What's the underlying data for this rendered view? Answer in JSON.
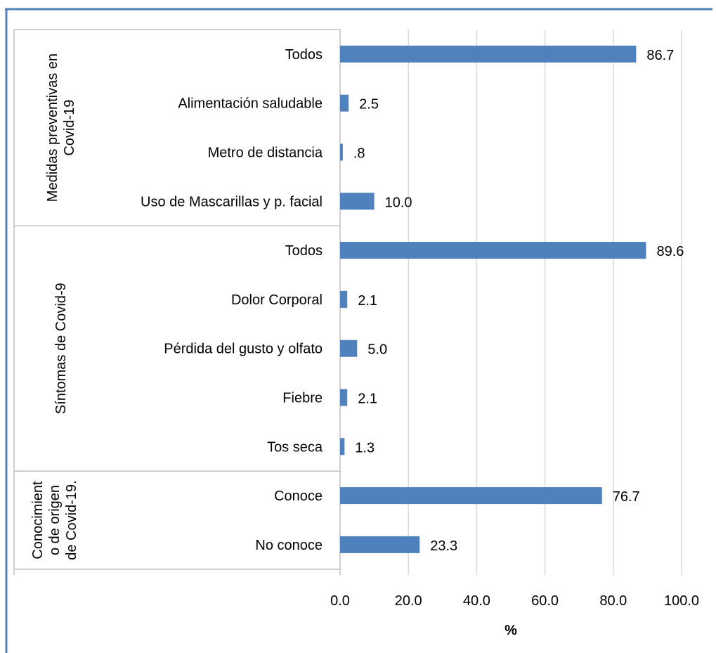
{
  "chart_data": {
    "type": "bar",
    "orientation": "horizontal",
    "groups": [
      {
        "label_lines": [
          "Medidas preventivas en",
          "Covid-19"
        ],
        "categories": [
          "Todos",
          "Alimentación saludable",
          "Metro de distancia",
          "Uso de Mascarillas y p. facial"
        ],
        "values": [
          86.7,
          2.5,
          0.8,
          10.0
        ],
        "value_labels": [
          "86.7",
          "2.5",
          ".8",
          "10.0"
        ]
      },
      {
        "label_lines": [
          "Síntomas de Covid-9"
        ],
        "categories": [
          "Todos",
          "Dolor Corporal",
          "Pérdida del gusto y olfato",
          "Fiebre",
          "Tos seca"
        ],
        "values": [
          89.6,
          2.1,
          5.0,
          2.1,
          1.3
        ],
        "value_labels": [
          "89.6",
          "2.1",
          "5.0",
          "2.1",
          "1.3"
        ]
      },
      {
        "label_lines": [
          "Conocimient",
          "o de origen",
          "de Covid-19."
        ],
        "categories": [
          "Conoce",
          "No conoce"
        ],
        "values": [
          76.7,
          23.3
        ],
        "value_labels": [
          "76.7",
          "23.3"
        ]
      }
    ],
    "xlabel": "%",
    "xlim": [
      0,
      100
    ],
    "xticks": [
      "0.0",
      "20.0",
      "40.0",
      "60.0",
      "80.0",
      "100.0"
    ],
    "grid": true,
    "colors": {
      "bar": "#4f81bd",
      "frame": "#4f81bd",
      "grid": "#d9d9d9",
      "axis": "#bfbfbf"
    }
  }
}
